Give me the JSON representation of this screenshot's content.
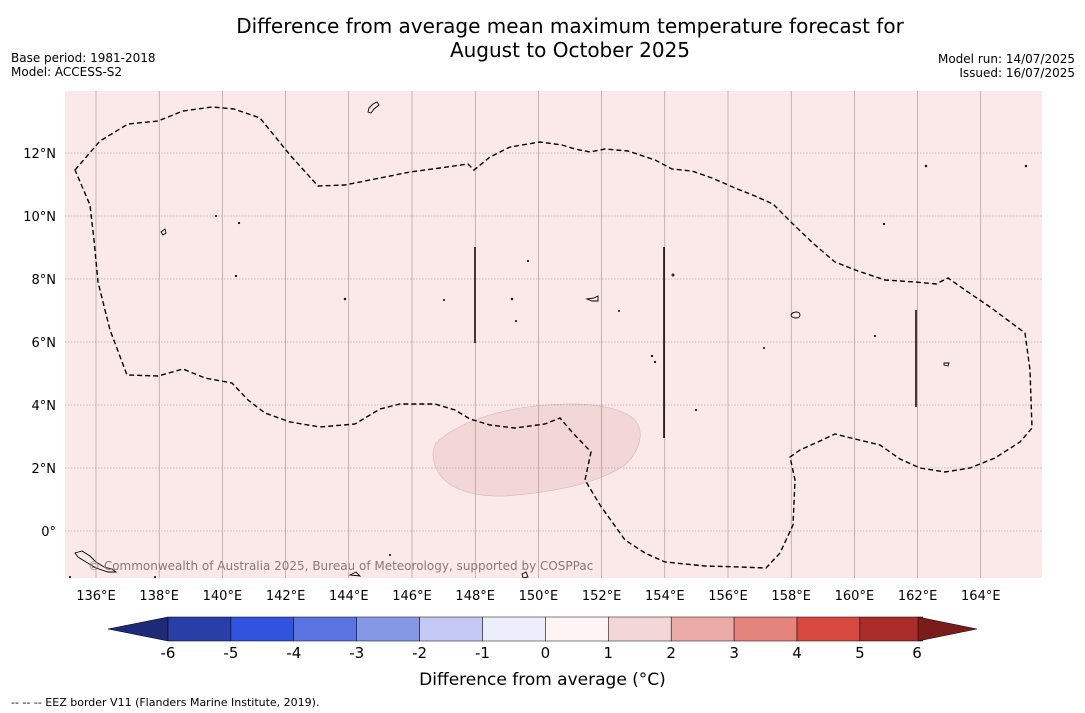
{
  "title_line1": "Difference from average mean maximum temperature forecast for",
  "title_line2": "August to October 2025",
  "base_period": "Base period: 1981-2018",
  "model": "Model: ACCESS-S2",
  "model_run": "Model run: 14/07/2025",
  "issued": "Issued: 16/07/2025",
  "copyright": "© Commonwealth of Australia 2025, Bureau of Meteorology, supported by COSPPac",
  "footnote": "--  --  -- EEZ border V11 (Flanders Marine Institute, 2019).",
  "colorbar": {
    "title": "Difference from average (°C)",
    "ticks": [
      "-6",
      "-5",
      "-4",
      "-3",
      "-2",
      "-1",
      "0",
      "1",
      "2",
      "3",
      "4",
      "5",
      "6"
    ],
    "colors": [
      "#2a3ea8",
      "#3154e0",
      "#5b73e0",
      "#8598e8",
      "#c3c9f4",
      "#eceefc",
      "#fff4f4",
      "#f3d6d6",
      "#ebaaa6",
      "#e5837d",
      "#d9483f",
      "#a92c28"
    ],
    "under_color": "#1c2a78",
    "over_color": "#7a1c1a"
  },
  "map": {
    "background_color": "#fbe9e9",
    "anomaly_region_color": "#f2d7d6",
    "lon_labels": [
      "136°E",
      "138°E",
      "140°E",
      "142°E",
      "144°E",
      "146°E",
      "148°E",
      "150°E",
      "152°E",
      "154°E",
      "156°E",
      "158°E",
      "160°E",
      "162°E",
      "164°E"
    ],
    "lat_labels": [
      "12°N",
      "10°N",
      "8°N",
      "6°N",
      "4°N",
      "2°N",
      "0°"
    ]
  }
}
